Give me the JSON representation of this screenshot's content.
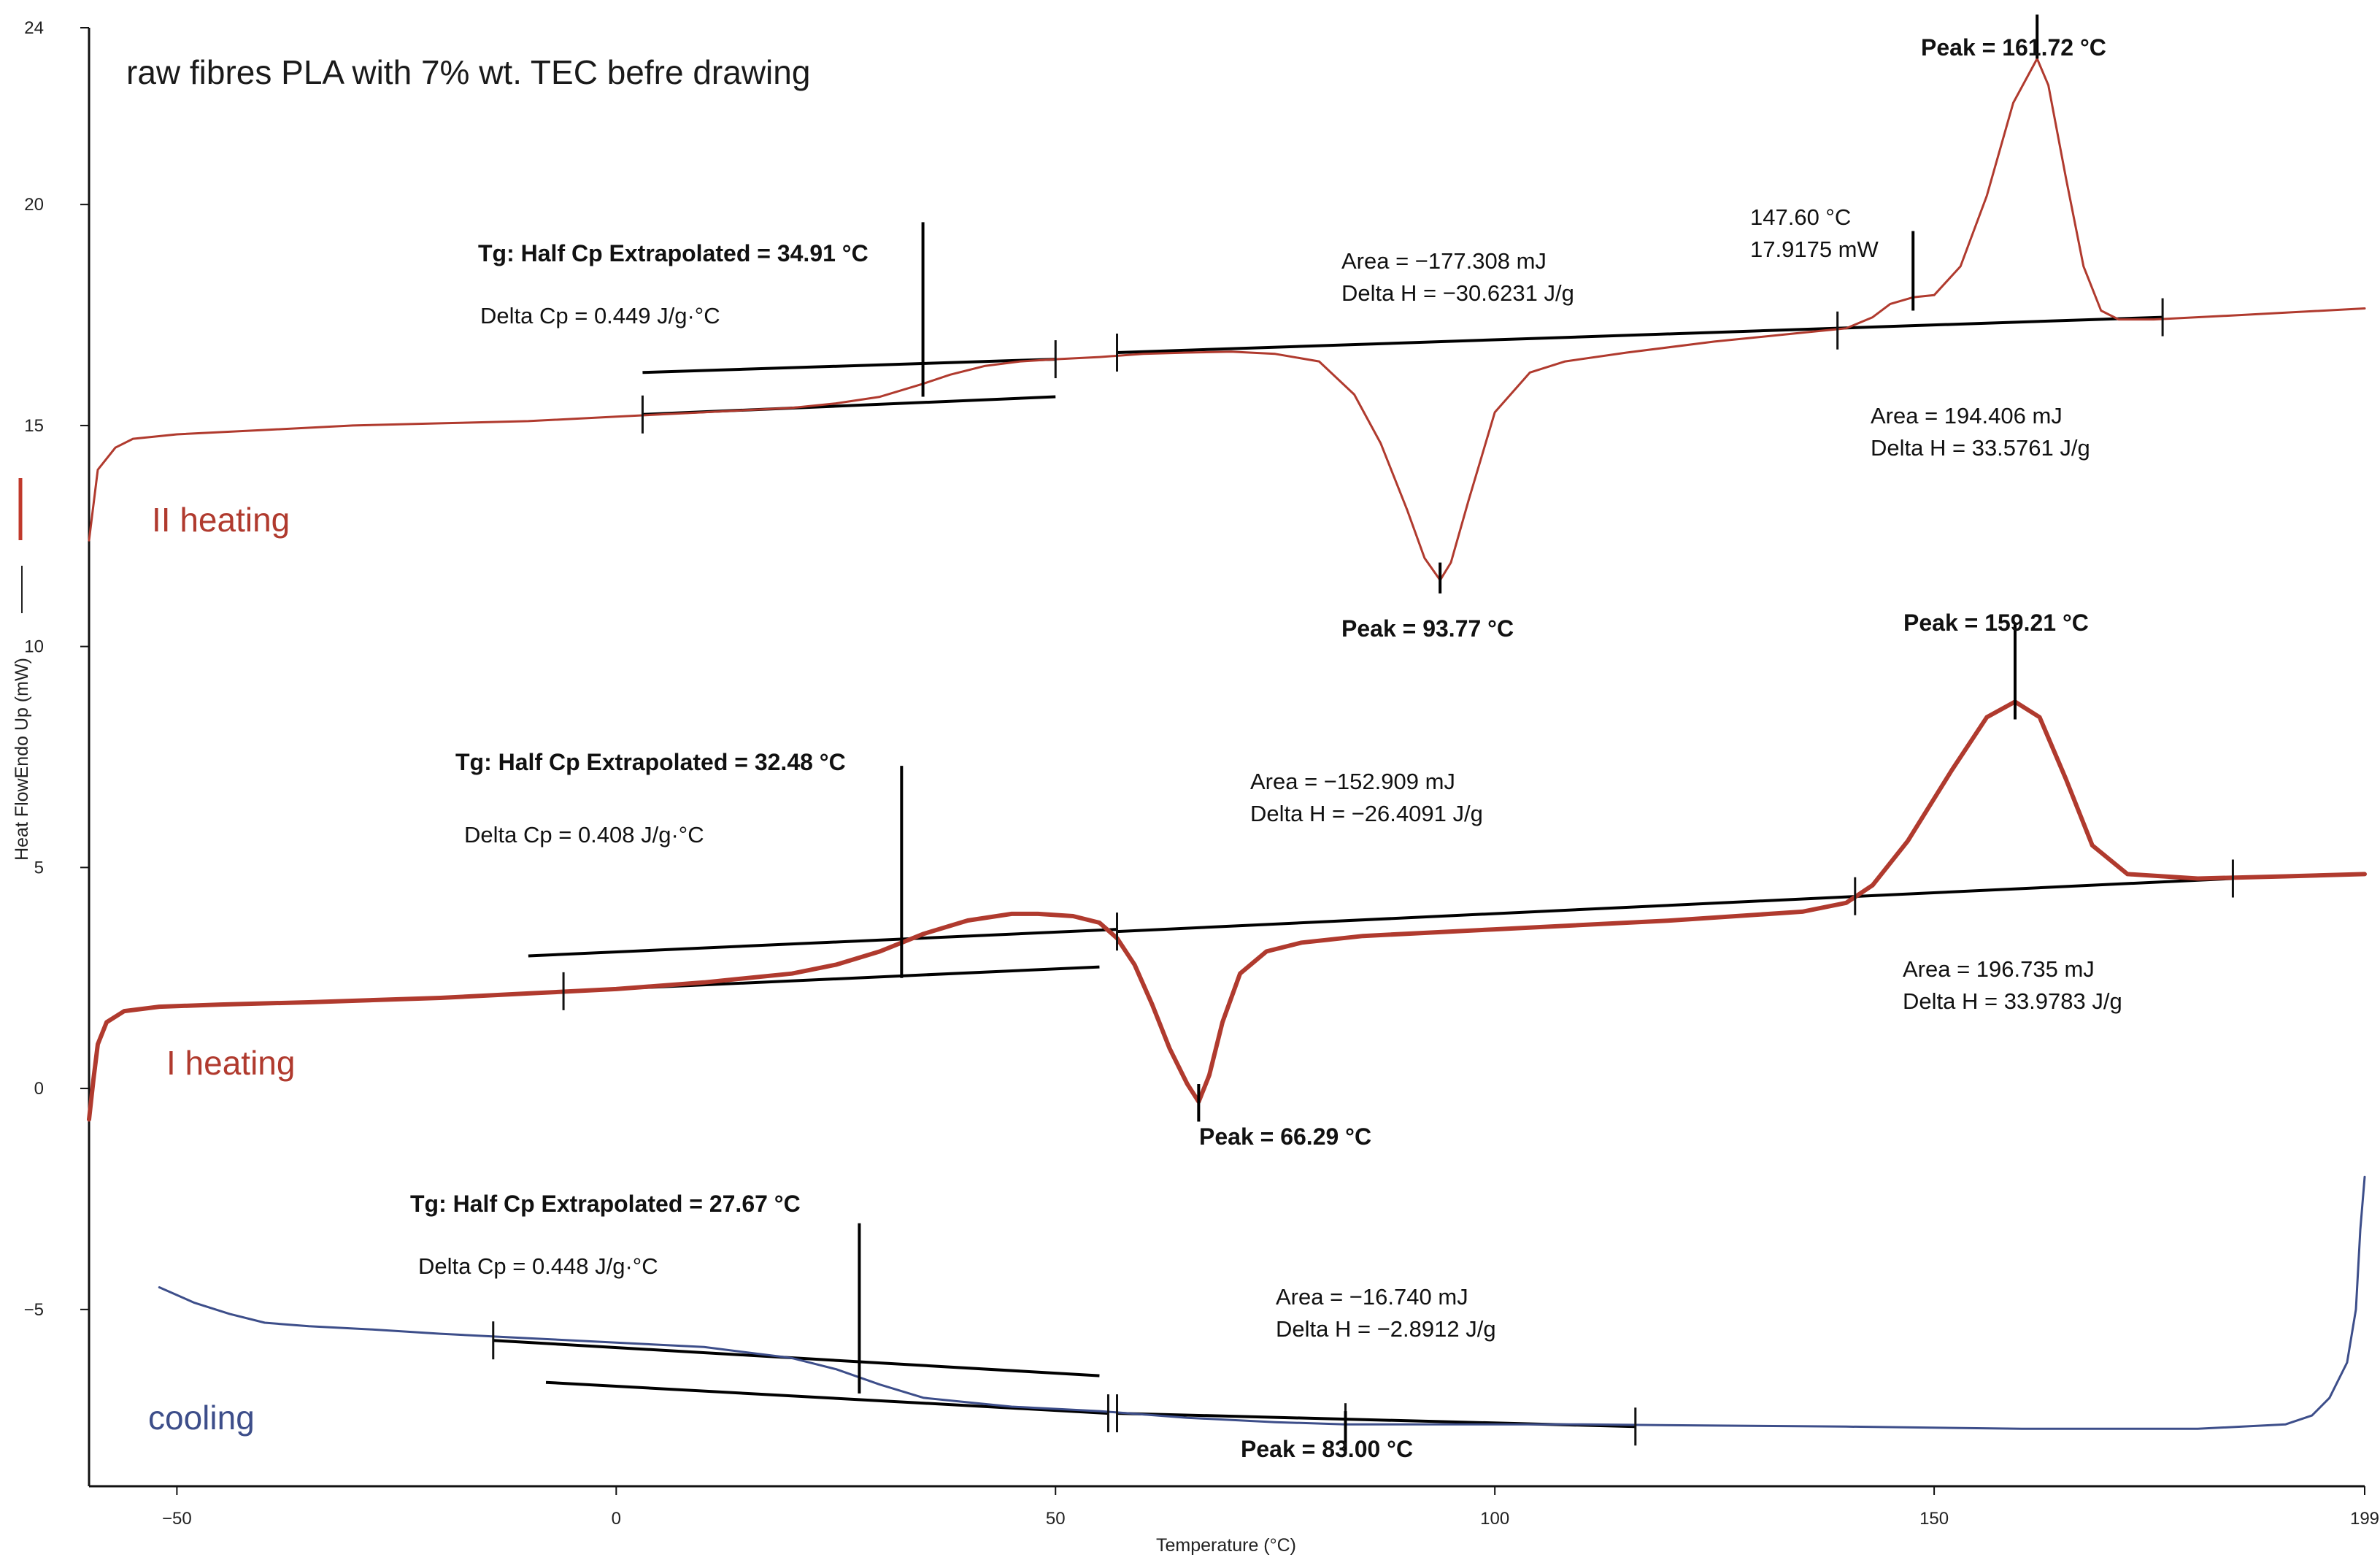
{
  "chart_data": {
    "type": "line",
    "title": "raw fibres PLA with 7% wt. TEC befre drawing",
    "xlabel": "Temperature (°C)",
    "ylabel": "Heat FlowEndo Up (mW)",
    "xlim": [
      -60,
      199
    ],
    "ylim": [
      -9,
      24
    ],
    "x_ticks": [
      -50,
      0,
      50,
      100,
      150,
      199
    ],
    "y_ticks": [
      -5,
      0,
      5,
      10,
      15,
      20,
      24
    ],
    "grid": false,
    "series": [
      {
        "name": "II heating",
        "color": "#b03a2e",
        "x": [
          -60,
          -59,
          -57,
          -55,
          -50,
          -40,
          -30,
          -20,
          -10,
          0,
          10,
          20,
          25,
          30,
          35,
          38,
          42,
          46,
          50,
          55,
          60,
          65,
          70,
          75,
          80,
          84,
          87,
          90,
          92,
          93.77,
          95,
          97,
          100,
          104,
          108,
          115,
          125,
          135,
          140,
          143,
          145,
          147.6,
          150,
          153,
          156,
          159,
          161.72,
          163,
          165,
          167,
          169,
          171,
          175,
          185,
          199
        ],
        "y": [
          12.4,
          14.0,
          14.5,
          14.7,
          14.8,
          14.9,
          15.0,
          15.05,
          15.1,
          15.2,
          15.3,
          15.4,
          15.5,
          15.65,
          15.95,
          16.15,
          16.35,
          16.45,
          16.5,
          16.55,
          16.62,
          16.65,
          16.67,
          16.62,
          16.45,
          15.7,
          14.6,
          13.1,
          12.0,
          11.5,
          11.9,
          13.3,
          15.3,
          16.2,
          16.45,
          16.65,
          16.9,
          17.1,
          17.2,
          17.45,
          17.75,
          17.9,
          17.95,
          18.6,
          20.2,
          22.3,
          23.3,
          22.7,
          20.6,
          18.6,
          17.6,
          17.4,
          17.4,
          17.5,
          17.65
        ]
      },
      {
        "name": "I heating",
        "color": "#b03a2e",
        "x": [
          -60,
          -59.5,
          -59,
          -58,
          -56,
          -52,
          -45,
          -35,
          -20,
          -10,
          0,
          10,
          20,
          25,
          30,
          35,
          40,
          45,
          48,
          52,
          55,
          57,
          59,
          61,
          63,
          65,
          66.29,
          67.5,
          69,
          71,
          74,
          78,
          85,
          100,
          120,
          135,
          140,
          143,
          147,
          152,
          156,
          159.21,
          162,
          165,
          168,
          172,
          180,
          190,
          199
        ],
        "y": [
          -0.7,
          0.2,
          1.0,
          1.5,
          1.75,
          1.85,
          1.9,
          1.95,
          2.05,
          2.15,
          2.25,
          2.4,
          2.6,
          2.8,
          3.1,
          3.5,
          3.8,
          3.95,
          3.95,
          3.9,
          3.75,
          3.4,
          2.8,
          1.9,
          0.9,
          0.1,
          -0.3,
          0.3,
          1.5,
          2.6,
          3.1,
          3.3,
          3.45,
          3.6,
          3.8,
          4.0,
          4.2,
          4.6,
          5.6,
          7.2,
          8.4,
          8.75,
          8.4,
          7.0,
          5.5,
          4.85,
          4.75,
          4.8,
          4.85
        ]
      },
      {
        "name": "cooling",
        "color": "#3d4e8a",
        "x": [
          -52,
          -48,
          -44,
          -40,
          -35,
          -28,
          -20,
          -10,
          0,
          10,
          20,
          25,
          30,
          35,
          40,
          45,
          55,
          65,
          75,
          83,
          90,
          100,
          110,
          120,
          140,
          160,
          180,
          190,
          193,
          195,
          197,
          198,
          198.5,
          199
        ],
        "y": [
          -4.5,
          -4.85,
          -5.1,
          -5.3,
          -5.38,
          -5.45,
          -5.55,
          -5.65,
          -5.75,
          -5.85,
          -6.1,
          -6.35,
          -6.7,
          -7.0,
          -7.1,
          -7.2,
          -7.3,
          -7.45,
          -7.55,
          -7.6,
          -7.6,
          -7.6,
          -7.6,
          -7.62,
          -7.65,
          -7.7,
          -7.7,
          -7.6,
          -7.4,
          -7.0,
          -6.2,
          -5.0,
          -3.2,
          -2.0
        ]
      }
    ],
    "annotations": {
      "ii_tg": {
        "text": "Tg: Half Cp Extrapolated = 34.91 °C",
        "x": 34.91
      },
      "ii_dcp": {
        "text": "Delta Cp = 0.449 J/g·°C"
      },
      "ii_cold_area": {
        "text": "Area = −177.308 mJ"
      },
      "ii_cold_dh": {
        "text": "Delta H = −30.6231 J/g"
      },
      "ii_cold_peak": {
        "text": "Peak = 93.77 °C",
        "x": 93.77
      },
      "ii_point_t": {
        "text": "147.60 °C",
        "x": 147.6,
        "y": 17.9175
      },
      "ii_point_mw": {
        "text": "17.9175 mW"
      },
      "ii_melt_peak": {
        "text": "Peak = 161.72 °C",
        "x": 161.72
      },
      "ii_melt_area": {
        "text": "Area = 194.406 mJ"
      },
      "ii_melt_dh": {
        "text": "Delta H = 33.5761 J/g"
      },
      "i_tg": {
        "text": "Tg: Half Cp Extrapolated = 32.48 °C",
        "x": 32.48
      },
      "i_dcp": {
        "text": "Delta Cp = 0.408 J/g·°C"
      },
      "i_cold_area": {
        "text": "Area = −152.909 mJ"
      },
      "i_cold_dh": {
        "text": "Delta H = −26.4091 J/g"
      },
      "i_cold_peak": {
        "text": "Peak = 66.29 °C",
        "x": 66.29
      },
      "i_melt_peak": {
        "text": "Peak = 159.21 °C",
        "x": 159.21
      },
      "i_melt_area": {
        "text": "Area = 196.735 mJ"
      },
      "i_melt_dh": {
        "text": "Delta H = 33.9783 J/g"
      },
      "c_tg": {
        "text": "Tg: Half Cp Extrapolated = 27.67 °C",
        "x": 27.67
      },
      "c_dcp": {
        "text": "Delta Cp = 0.448 J/g·°C"
      },
      "c_area": {
        "text": "Area = −16.740 mJ"
      },
      "c_dh": {
        "text": "Delta H = −2.8912 J/g"
      },
      "c_peak": {
        "text": "Peak = 83.00 °C",
        "x": 83.0
      }
    },
    "baselines": [
      {
        "series": "II heating",
        "x1": 3,
        "y1": 16.2,
        "x2": 50,
        "y2": 16.5
      },
      {
        "series": "II heating",
        "x1": 3,
        "y1": 15.25,
        "x2": 50,
        "y2": 15.65
      },
      {
        "series": "II heating",
        "x1": 57,
        "y1": 16.65,
        "x2": 176,
        "y2": 17.45
      },
      {
        "series": "I heating",
        "x1": -10,
        "y1": 3.0,
        "x2": 57,
        "y2": 3.6
      },
      {
        "series": "I heating",
        "x1": -6,
        "y1": 2.2,
        "x2": 55,
        "y2": 2.75
      },
      {
        "series": "I heating",
        "x1": 57,
        "y1": 3.55,
        "x2": 184,
        "y2": 4.75
      },
      {
        "series": "cooling",
        "x1": -14,
        "y1": -5.7,
        "x2": 55,
        "y2": -6.5
      },
      {
        "series": "cooling",
        "x1": -8,
        "y1": -6.65,
        "x2": 56,
        "y2": -7.35
      },
      {
        "series": "cooling",
        "x1": 57,
        "y1": -7.35,
        "x2": 116,
        "y2": -7.65
      }
    ],
    "boundary_ticks": [
      {
        "x": 3,
        "y": 15.25
      },
      {
        "x": 50,
        "y": 16.5
      },
      {
        "x": 57,
        "y": 16.65
      },
      {
        "x": 139,
        "y": 17.15
      },
      {
        "x": 176,
        "y": 17.45
      },
      {
        "x": -6,
        "y": 2.2
      },
      {
        "x": 57,
        "y": 3.55
      },
      {
        "x": 141,
        "y": 4.35
      },
      {
        "x": 184,
        "y": 4.75
      },
      {
        "x": -14,
        "y": -5.7
      },
      {
        "x": 56,
        "y": -7.35
      },
      {
        "x": 57,
        "y": -7.35
      },
      {
        "x": 83,
        "y": -7.55
      },
      {
        "x": 116,
        "y": -7.65
      }
    ]
  }
}
